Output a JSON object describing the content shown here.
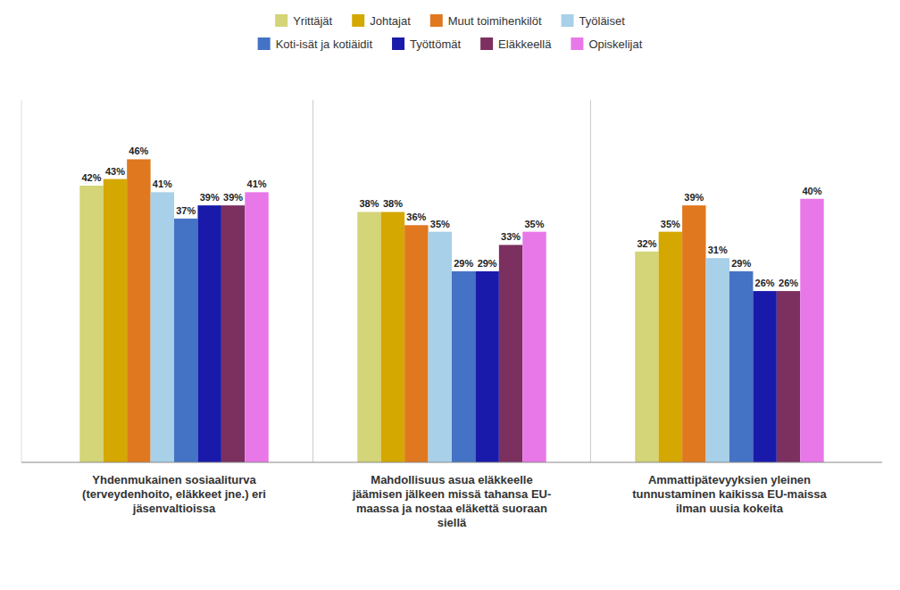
{
  "chart_data": {
    "type": "bar",
    "categories": [
      "Yhdenmukainen sosiaaliturva\n(terveydenhoito, eläkkeet jne.) eri\njäsenvaltioissa",
      "Mahdollisuus asua eläkkeelle\njäämisen jälkeen missä tahansa EU-\nmaassa ja nostaa eläkettä suoraan\nsiellä",
      "Ammattipätevyyksien yleinen\ntunnustaminen kaikissa EU-maissa\nilman uusia kokeita"
    ],
    "series": [
      {
        "name": "Yrittäjät",
        "color": "#d4d478",
        "values": [
          42,
          38,
          32
        ],
        "value_labels": [
          "42%",
          "38%",
          "32%"
        ]
      },
      {
        "name": "Johtajat",
        "color": "#d4a800",
        "values": [
          43,
          38,
          35
        ],
        "value_labels": [
          "43%",
          "38%",
          "35%"
        ]
      },
      {
        "name": "Muut toimihenkilöt",
        "color": "#e07820",
        "values": [
          46,
          36,
          39
        ],
        "value_labels": [
          "46%",
          "36%",
          "39%"
        ]
      },
      {
        "name": "Työläiset",
        "color": "#a8d0e8",
        "values": [
          41,
          35,
          31
        ],
        "value_labels": [
          "41%",
          "35%",
          "31%"
        ]
      },
      {
        "name": "Koti-isät ja kotiäidit",
        "color": "#4472c4",
        "values": [
          37,
          29,
          29
        ],
        "value_labels": [
          "37%",
          "29%",
          "29%"
        ]
      },
      {
        "name": "Työttömät",
        "color": "#1a1aaa",
        "values": [
          39,
          29,
          26
        ],
        "value_labels": [
          "39%",
          "29%",
          "26%"
        ]
      },
      {
        "name": "Eläkkeellä",
        "color": "#7b3060",
        "values": [
          39,
          33,
          26
        ],
        "value_labels": [
          "39%",
          "33%",
          "26%"
        ]
      },
      {
        "name": "Opiskelijat",
        "color": "#e878e8",
        "values": [
          41,
          35,
          40
        ],
        "value_labels": [
          "41%",
          "35%",
          "40%"
        ]
      }
    ],
    "ylim": [
      0,
      55
    ],
    "data_labels": true,
    "tick_labels": "x",
    "legend": "top",
    "grid": false
  }
}
